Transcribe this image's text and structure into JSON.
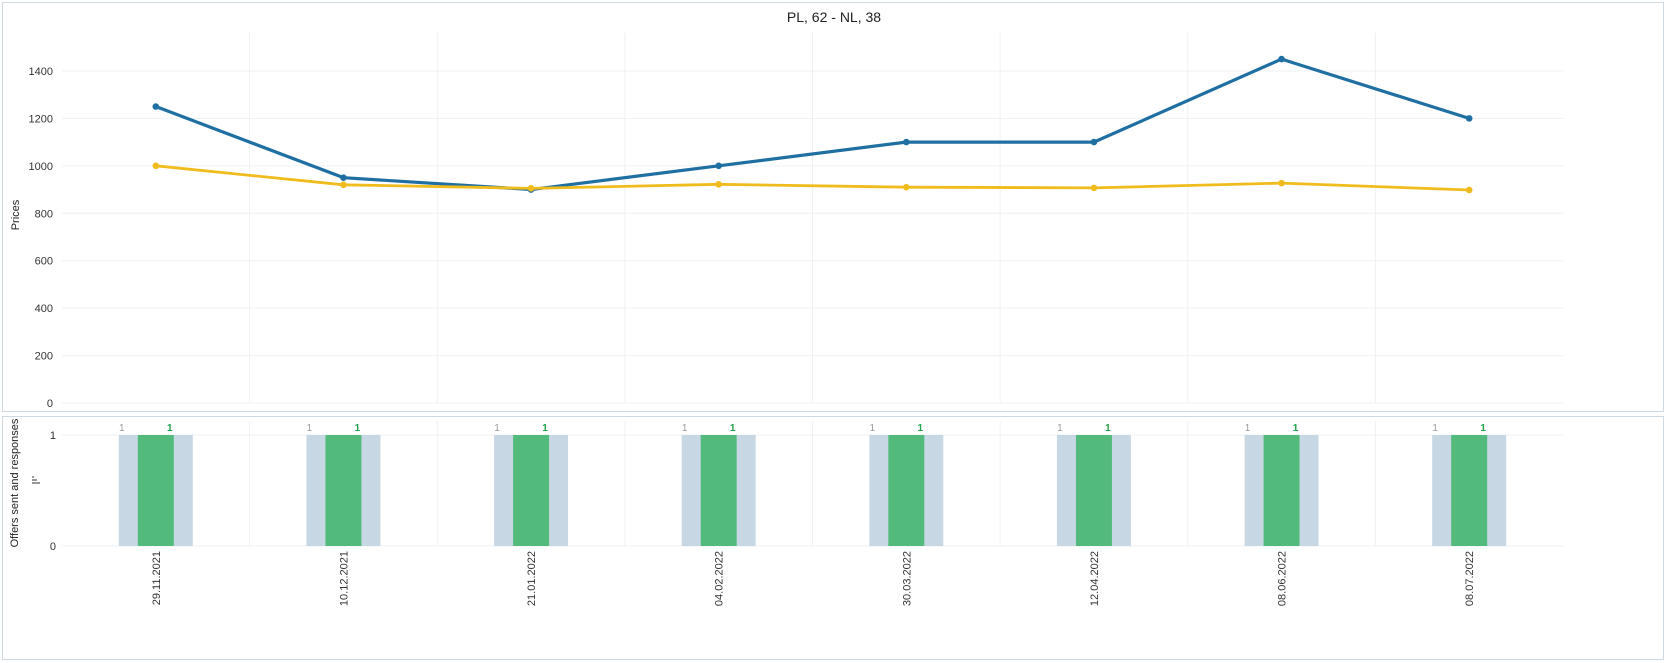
{
  "chart_data": [
    {
      "type": "line",
      "title": "PL, 62 - NL, 38",
      "xlabel": "",
      "ylabel": "Prices",
      "ylim": [
        0,
        1560
      ],
      "yticks": [
        0,
        200,
        400,
        600,
        800,
        1000,
        1200,
        1400
      ],
      "grid": true,
      "categories": [
        "29.11.2021",
        "10.12.2021",
        "21.01.2022",
        "04.02.2022",
        "30.03.2022",
        "12.04.2022",
        "08.06.2022",
        "08.07.2022"
      ],
      "series": [
        {
          "values": [
            1250,
            950,
            900,
            1000,
            1100,
            1100,
            1450,
            1200
          ],
          "color": "#1f6fa3"
        },
        {
          "values": [
            1000,
            920,
            905,
            922,
            910,
            907,
            927,
            898
          ],
          "color": "#f0bc1d"
        }
      ]
    },
    {
      "type": "bar",
      "title": "",
      "ylabel": "Offers sent and responses",
      "ylim": [
        0,
        1
      ],
      "yticks": [
        0,
        1
      ],
      "categories": [
        "29.11.2021",
        "10.12.2021",
        "21.01.2022",
        "04.02.2022",
        "30.03.2022",
        "12.04.2022",
        "08.06.2022",
        "08.07.2022"
      ],
      "series": [
        {
          "values": [
            1,
            1,
            1,
            1,
            1,
            1,
            1,
            1
          ],
          "color": "#c8d7e4",
          "label_color": "#9a9a9a"
        },
        {
          "values": [
            1,
            1,
            1,
            1,
            1,
            1,
            1,
            1
          ],
          "color": "#52bb7b",
          "label_color": "#1fa34a"
        }
      ],
      "side_icon": "sort-icon"
    }
  ]
}
